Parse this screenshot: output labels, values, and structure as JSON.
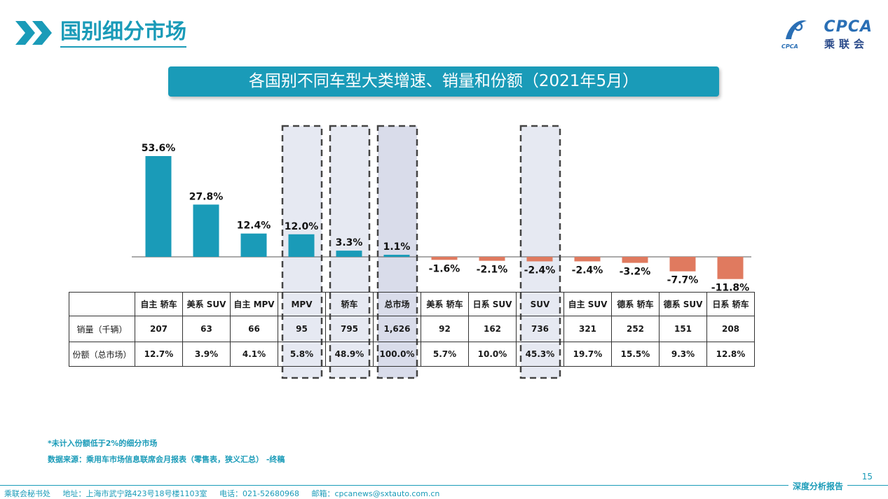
{
  "page": {
    "title": "国别细分市场",
    "logo_text": "CPCA",
    "logo_cn": "乘联会",
    "logo_small": "CPCA",
    "page_number": "15"
  },
  "chart_data": {
    "type": "bar",
    "title": "各国别不同车型大类增速、销量和份额（2021年5月）",
    "categories": [
      "自主 轿车",
      "美系 SUV",
      "自主 MPV",
      "MPV",
      "轿车",
      "总市场",
      "美系 轿车",
      "日系 SUV",
      "SUV",
      "自主 SUV",
      "德系 轿车",
      "德系 SUV",
      "日系 轿车"
    ],
    "values": [
      53.6,
      27.8,
      12.4,
      12.0,
      3.3,
      1.1,
      -1.6,
      -2.1,
      -2.4,
      -2.4,
      -3.2,
      -7.7,
      -11.8
    ],
    "value_labels": [
      "53.6%",
      "27.8%",
      "12.4%",
      "12.0%",
      "3.3%",
      "1.1%",
      "-1.6%",
      "-2.1%",
      "-2.4%",
      "-2.4%",
      "-3.2%",
      "-7.7%",
      "-11.8%"
    ],
    "highlighted": [
      3,
      4,
      5,
      8
    ],
    "market_total_index": 5,
    "colors": {
      "positive": "#1a9bb8",
      "negative": "#e07a5f",
      "highlight_fill": "#e6e9f2",
      "highlight_strong": "#d9dcea"
    },
    "grid": false,
    "legend": "none"
  },
  "table": {
    "row_labels": {
      "volume": "销量（千辆）",
      "share": "份额（总市场）"
    },
    "volume": [
      "207",
      "63",
      "66",
      "95",
      "795",
      "1,626",
      "92",
      "162",
      "736",
      "321",
      "252",
      "151",
      "208"
    ],
    "share": [
      "12.7%",
      "3.9%",
      "4.1%",
      "5.8%",
      "48.9%",
      "100.0%",
      "5.7%",
      "10.0%",
      "45.3%",
      "19.7%",
      "15.5%",
      "9.3%",
      "12.8%"
    ]
  },
  "footnotes": {
    "note1": "*未计入份额低于2%的细分市场",
    "note2": "数据来源：乘用车市场信息联席会月报表（零售表，狭义汇总）  -终稿"
  },
  "footer": {
    "org": "乘联会秘书处",
    "address": "地址：上海市武宁路423号18号楼1103室",
    "phone": "电话：021-52680968",
    "email": "邮箱：cpcanews@sxtauto.com.cn",
    "report": "深度分析报告"
  }
}
